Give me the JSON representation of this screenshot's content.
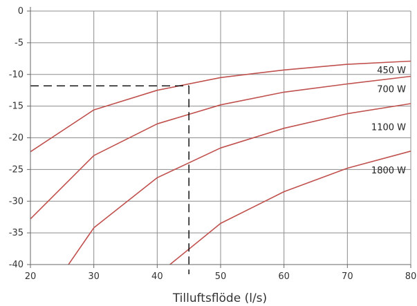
{
  "chart_data": {
    "type": "line",
    "title": "",
    "xlabel": "Tilluftsflöde (l/s)",
    "ylabel": "",
    "xlim": [
      20,
      80
    ],
    "ylim": [
      -40,
      0
    ],
    "x_ticks": [
      20,
      30,
      40,
      50,
      60,
      70,
      80
    ],
    "y_ticks": [
      0,
      -5,
      -10,
      -15,
      -20,
      -25,
      -30,
      -35,
      -40
    ],
    "grid": true,
    "legend": "inline labels at right",
    "series_color": "#c0504d",
    "series": [
      {
        "name": "450 W",
        "points": [
          [
            20,
            -22.2
          ],
          [
            30,
            -15.6
          ],
          [
            40,
            -12.5
          ],
          [
            50,
            -10.5
          ],
          [
            60,
            -9.3
          ],
          [
            70,
            -8.4
          ],
          [
            80,
            -7.9
          ]
        ]
      },
      {
        "name": "700 W",
        "points": [
          [
            20,
            -32.8
          ],
          [
            30,
            -22.8
          ],
          [
            40,
            -17.8
          ],
          [
            50,
            -14.8
          ],
          [
            60,
            -12.8
          ],
          [
            70,
            -11.5
          ],
          [
            80,
            -10.3
          ]
        ]
      },
      {
        "name": "1100 W",
        "points": [
          [
            26,
            -40
          ],
          [
            30,
            -34.2
          ],
          [
            40,
            -26.3
          ],
          [
            50,
            -21.6
          ],
          [
            60,
            -18.5
          ],
          [
            70,
            -16.2
          ],
          [
            80,
            -14.6
          ]
        ]
      },
      {
        "name": "1800 W",
        "points": [
          [
            42,
            -40
          ],
          [
            50,
            -33.5
          ],
          [
            60,
            -28.5
          ],
          [
            70,
            -24.8
          ],
          [
            80,
            -22.1
          ]
        ]
      }
    ],
    "reference_lines": {
      "x": 45,
      "y": -11.8,
      "style": "dashed",
      "color": "#000000"
    }
  }
}
